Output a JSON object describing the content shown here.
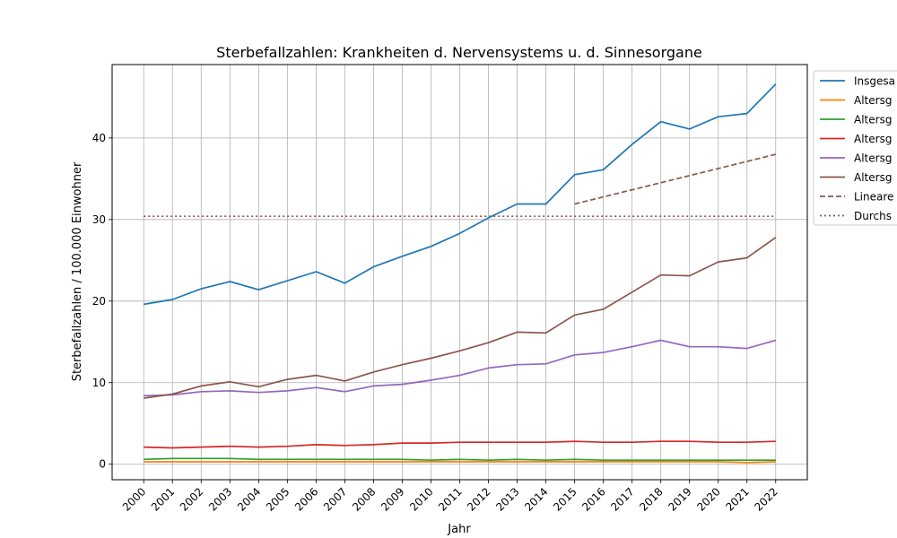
{
  "chart_data": {
    "type": "line",
    "title": "Sterbefallzahlen: Krankheiten d. Nervensystems u. d. Sinnesorgane",
    "xlabel": "Jahr",
    "ylabel": "Sterbefallzahlen / 100.000 Einwohner",
    "x": [
      2000,
      2001,
      2002,
      2003,
      2004,
      2005,
      2006,
      2007,
      2008,
      2009,
      2010,
      2011,
      2012,
      2013,
      2014,
      2015,
      2016,
      2017,
      2018,
      2019,
      2020,
      2021,
      2022
    ],
    "ylim": [
      -1.9,
      49.0
    ],
    "yticks": [
      0,
      10,
      20,
      30,
      40
    ],
    "grid": true,
    "legend_position": "right",
    "series": [
      {
        "name": "Insgesa",
        "color": "#1f77b4",
        "dash": "solid",
        "values": [
          19.6,
          20.2,
          21.5,
          22.4,
          21.4,
          22.5,
          23.6,
          22.2,
          24.2,
          25.5,
          26.7,
          28.3,
          30.2,
          31.9,
          31.9,
          35.5,
          36.1,
          39.2,
          42.0,
          41.1,
          42.6,
          43.0,
          46.6
        ]
      },
      {
        "name": "Altersg",
        "color": "#ff7f0e",
        "dash": "solid",
        "values": [
          0.3,
          0.3,
          0.3,
          0.3,
          0.3,
          0.3,
          0.3,
          0.3,
          0.3,
          0.3,
          0.3,
          0.3,
          0.3,
          0.3,
          0.3,
          0.3,
          0.3,
          0.3,
          0.3,
          0.3,
          0.3,
          0.2,
          0.3
        ]
      },
      {
        "name": "Altersg",
        "color": "#2ca02c",
        "dash": "solid",
        "values": [
          0.6,
          0.7,
          0.7,
          0.7,
          0.6,
          0.6,
          0.6,
          0.6,
          0.6,
          0.6,
          0.5,
          0.6,
          0.5,
          0.6,
          0.5,
          0.6,
          0.5,
          0.5,
          0.5,
          0.5,
          0.5,
          0.5,
          0.5
        ]
      },
      {
        "name": "Altersg",
        "color": "#d62728",
        "dash": "solid",
        "values": [
          2.1,
          2.0,
          2.1,
          2.2,
          2.1,
          2.2,
          2.4,
          2.3,
          2.4,
          2.6,
          2.6,
          2.7,
          2.7,
          2.7,
          2.7,
          2.8,
          2.7,
          2.7,
          2.8,
          2.8,
          2.7,
          2.7,
          2.8
        ]
      },
      {
        "name": "Altersg",
        "color": "#9467bd",
        "dash": "solid",
        "values": [
          8.4,
          8.5,
          8.9,
          9.0,
          8.8,
          9.0,
          9.4,
          8.9,
          9.6,
          9.8,
          10.3,
          10.9,
          11.8,
          12.2,
          12.3,
          13.4,
          13.7,
          14.4,
          15.2,
          14.4,
          14.4,
          14.2,
          15.2
        ]
      },
      {
        "name": "Altersg",
        "color": "#8c564b",
        "dash": "solid",
        "values": [
          8.1,
          8.6,
          9.6,
          10.1,
          9.5,
          10.4,
          10.9,
          10.2,
          11.3,
          12.2,
          13.0,
          13.9,
          14.9,
          16.2,
          16.1,
          18.3,
          19.0,
          21.1,
          23.2,
          23.1,
          24.8,
          25.3,
          27.8
        ]
      },
      {
        "name": "Lineare",
        "color": "#8c564b",
        "dash": "dashed",
        "x": [
          2015,
          2022
        ],
        "values": [
          31.9,
          38.0
        ]
      },
      {
        "name": "Durchs",
        "color": "#8c564b",
        "dash": "dotted",
        "x": [
          2000,
          2022
        ],
        "values": [
          30.4,
          30.4
        ]
      }
    ]
  }
}
